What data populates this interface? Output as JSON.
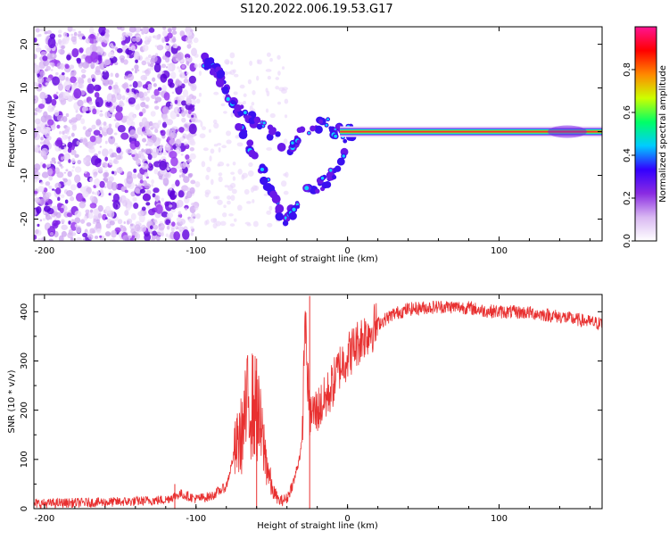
{
  "figure": {
    "title": "S120.2022.006.19.53.G17"
  },
  "chart_data": [
    {
      "type": "heatmap",
      "title": "S120.2022.006.19.53.G17",
      "xlabel": "Height of straight line (km)",
      "ylabel": "Frequency (Hz)",
      "xlim": [
        -207,
        168
      ],
      "ylim": [
        -25,
        24
      ],
      "xticks": [
        -200,
        -100,
        0,
        100
      ],
      "xtick_labels": [
        "-200",
        "-100",
        "0",
        "100"
      ],
      "yticks": [
        -20,
        -10,
        0,
        10,
        20
      ],
      "ytick_labels": [
        "-20",
        "-10",
        "0",
        "10",
        "20"
      ],
      "grid": false,
      "colorbar": {
        "label": "Normalized spectral amplitude",
        "range": [
          0,
          1
        ],
        "ticks": [
          0.0,
          0.2,
          0.4,
          0.6,
          0.8
        ],
        "tick_labels": [
          "0.0",
          "0.2",
          "0.4",
          "0.6",
          "0.8"
        ],
        "colors": [
          "#ffffff",
          "#d9b8f2",
          "#8a2be2",
          "#3300ff",
          "#00ccff",
          "#00ff66",
          "#ccff00",
          "#ff8800",
          "#ff0000",
          "#ff1493"
        ]
      },
      "ridge": {
        "x": [
          -95,
          -90,
          -85,
          -80,
          -75,
          -70,
          -65,
          -60,
          -55,
          -50,
          -45,
          -40,
          -35,
          -30,
          -25,
          -20,
          -15,
          -10,
          -5,
          0,
          50,
          100,
          168
        ],
        "y": [
          16,
          15,
          13,
          9,
          5,
          1,
          -3,
          -6,
          -10,
          -14,
          -18,
          -21,
          -17,
          -15,
          -14,
          -13,
          -11,
          -10,
          -8,
          0,
          0,
          0,
          0
        ]
      },
      "ridge2": {
        "x": [
          -95,
          -85,
          -80,
          -75,
          -65,
          -55,
          -45,
          -40,
          -30,
          -20,
          -15,
          -10,
          0,
          50,
          100,
          140,
          150,
          168
        ],
        "y": [
          16,
          14,
          9,
          6,
          3,
          1,
          -2,
          -5,
          0,
          1,
          3,
          0,
          0,
          0,
          0,
          0,
          0,
          0
        ]
      },
      "scatter_region": {
        "x": [
          -207,
          -100
        ],
        "y": [
          -25,
          24
        ]
      },
      "constant_line": {
        "x": [
          0,
          168
        ],
        "y": 0
      }
    },
    {
      "type": "line",
      "xlabel": "Height of straight line (km)",
      "ylabel": "SNR (10 * v/v)",
      "xlim": [
        -207,
        168
      ],
      "ylim": [
        0,
        435
      ],
      "xticks": [
        -200,
        -100,
        0,
        100
      ],
      "xtick_labels": [
        "-200",
        "-100",
        "0",
        "100"
      ],
      "yticks": [
        0,
        100,
        200,
        300,
        400
      ],
      "ytick_labels": [
        "0",
        "100",
        "200",
        "300",
        "400"
      ],
      "grid": false,
      "color": "#e83030",
      "series": [
        {
          "x": [
            -207,
            -180,
            -160,
            -140,
            -120,
            -115,
            -110,
            -100,
            -90,
            -80,
            -75,
            -70,
            -65,
            -60,
            -55,
            -50,
            -45,
            -40,
            -35,
            -30,
            -28,
            -27,
            -25,
            -20,
            -15,
            -10,
            -5,
            0,
            5,
            10,
            20,
            30,
            40,
            50,
            60,
            70,
            80,
            90,
            100,
            120,
            140,
            168
          ],
          "y": [
            10,
            12,
            13,
            15,
            18,
            25,
            30,
            20,
            25,
            45,
            110,
            150,
            220,
            200,
            120,
            40,
            15,
            20,
            60,
            130,
            410,
            300,
            190,
            200,
            220,
            250,
            290,
            310,
            330,
            350,
            375,
            395,
            405,
            408,
            410,
            410,
            408,
            402,
            400,
            398,
            390,
            375
          ]
        }
      ],
      "spikes": [
        {
          "x": -114,
          "y": 50
        },
        {
          "x": -60,
          "y": 305
        },
        {
          "x": -25,
          "y": 432
        }
      ]
    }
  ]
}
